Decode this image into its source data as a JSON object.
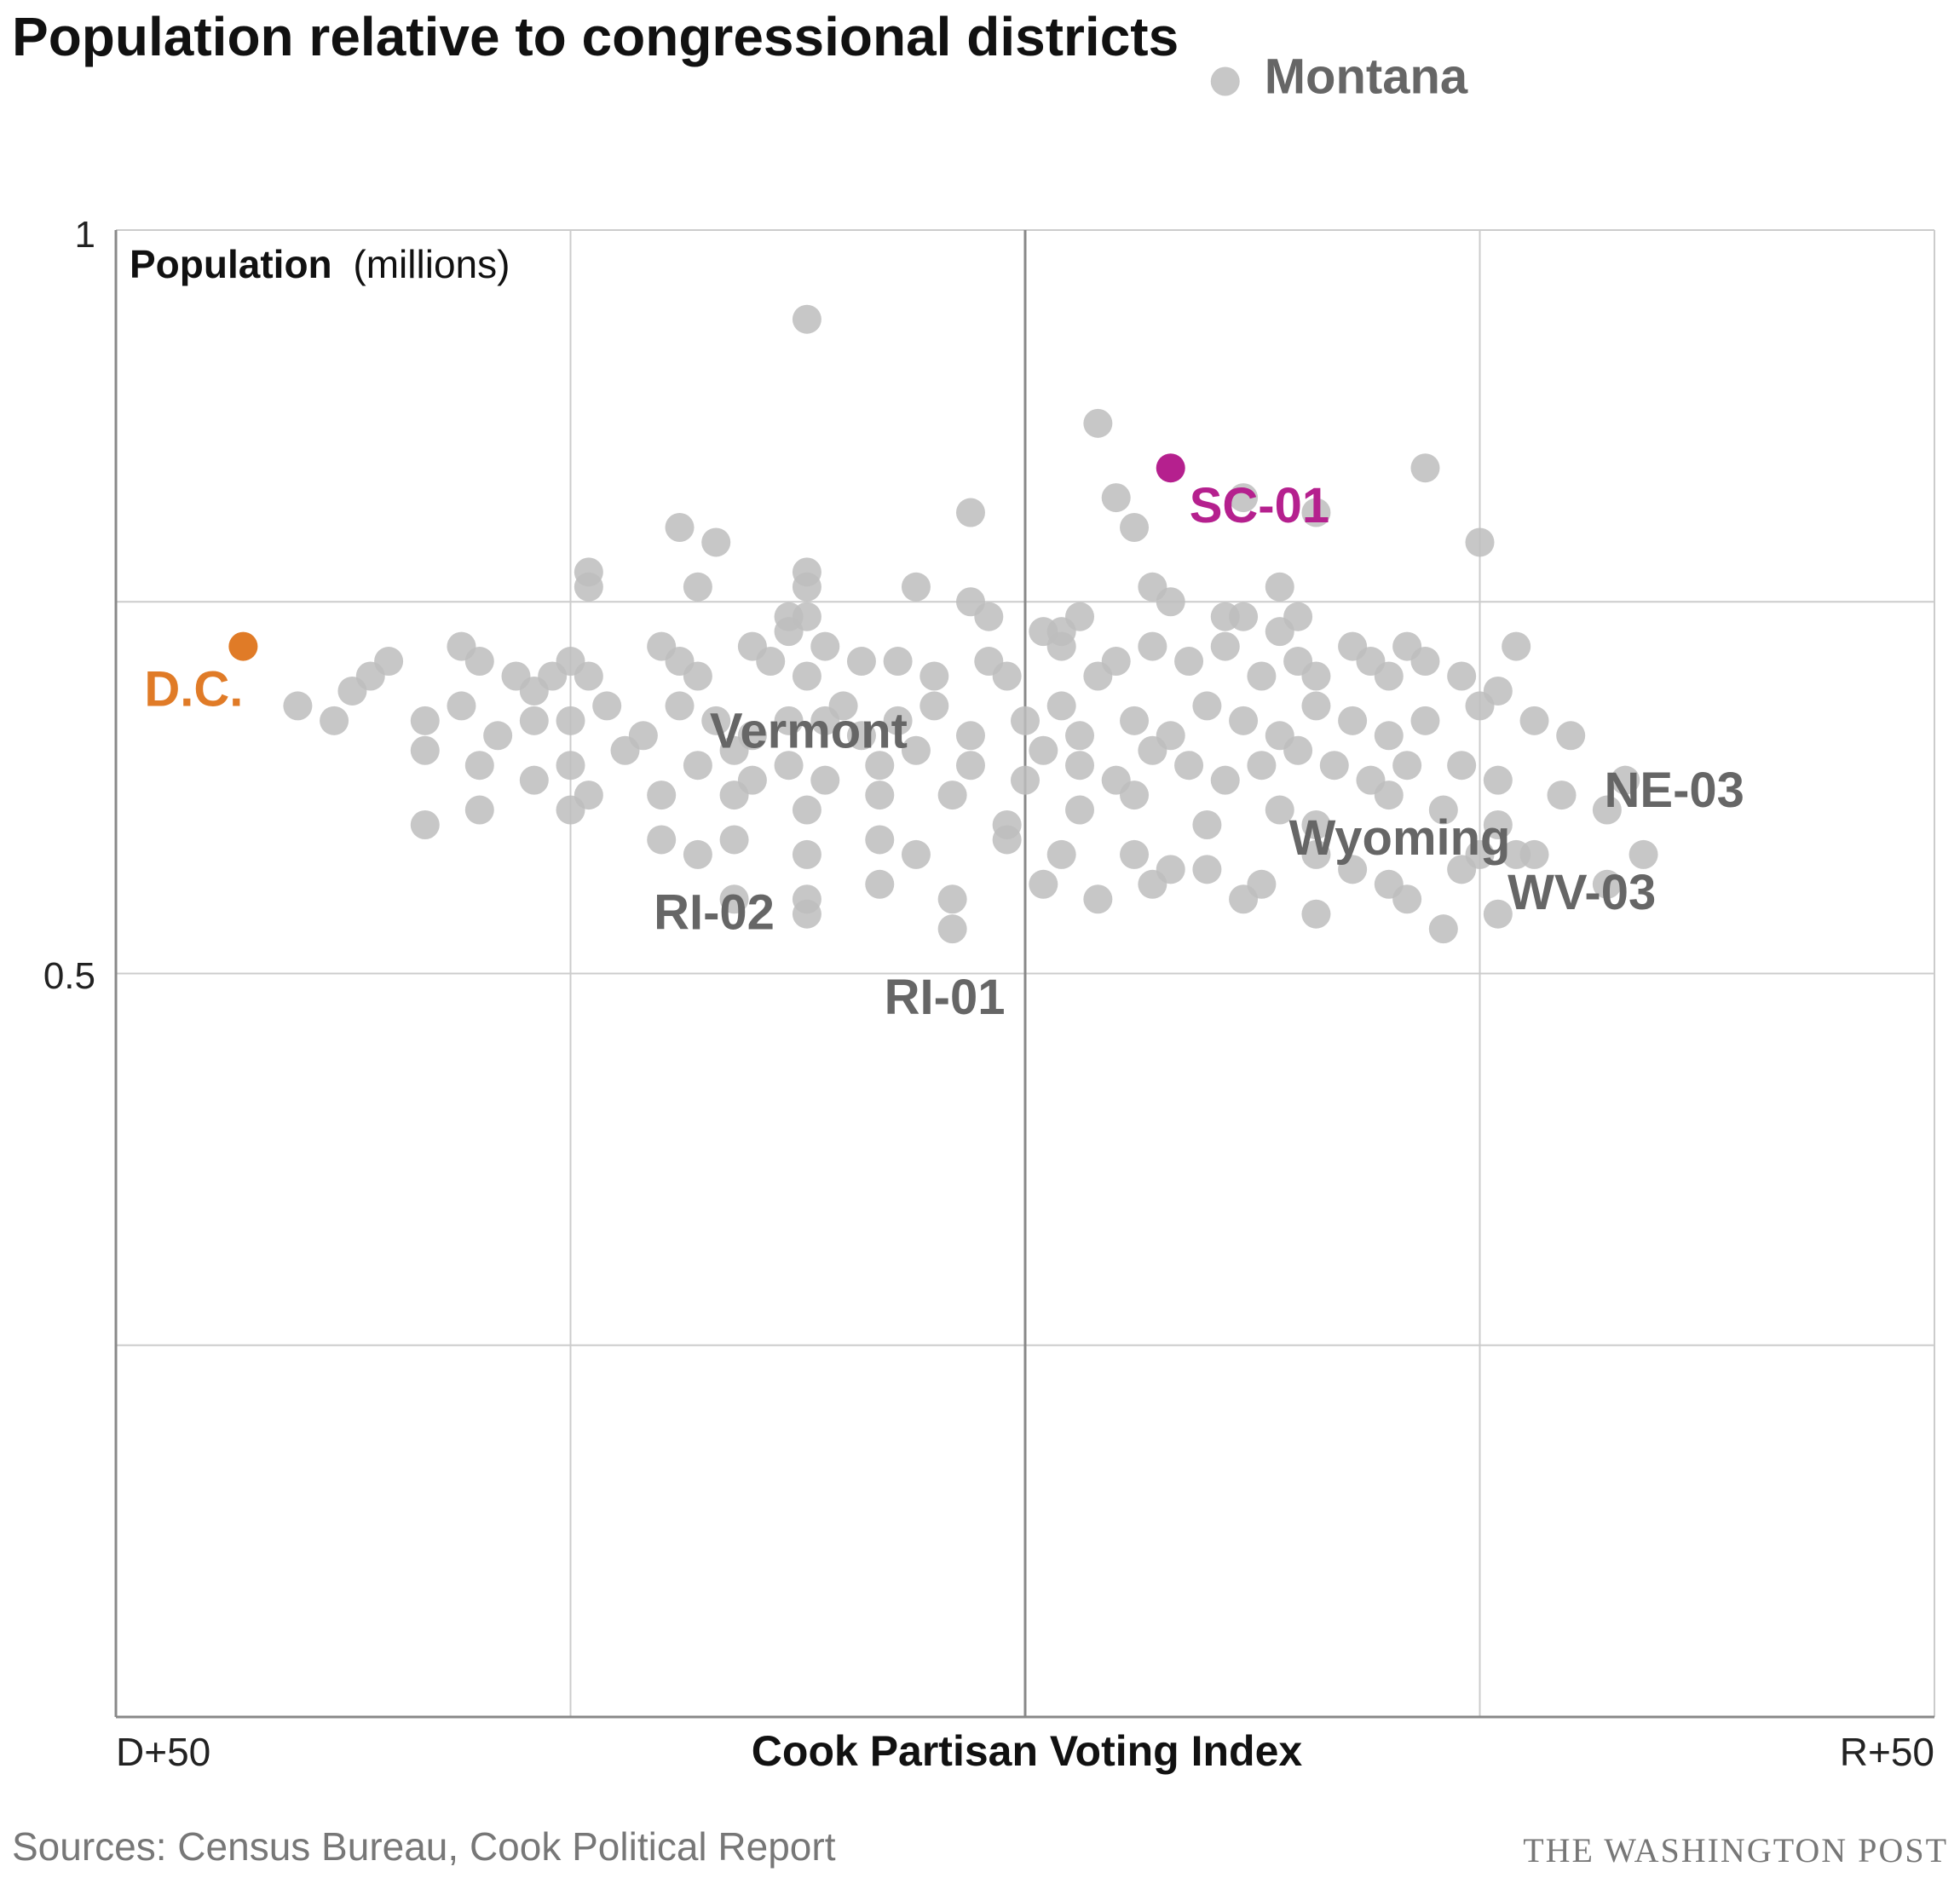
{
  "title": "Population relative to congressional districts",
  "source": "Sources: Census Bureau, Cook Political Report",
  "credit": "THE WASHINGTON POST",
  "colors": {
    "default": "#bdbdbd",
    "dc": "#e07b27",
    "sc01": "#b5208e",
    "label": "#666666",
    "grid": "#cccccc",
    "axis": "#888888"
  },
  "chart_data": {
    "type": "scatter",
    "y_label_bold": "Population",
    "y_label_unit": "(millions)",
    "x_label": "Cook Partisan Voting Index",
    "x_tick_left": "D+50",
    "x_tick_right": "R+50",
    "y_ticks": [
      "1",
      "0.5"
    ],
    "xlim": [
      -50,
      50
    ],
    "ylim": [
      0,
      1
    ],
    "grid": true,
    "highlighted": [
      {
        "label": "D.C.",
        "x": -43,
        "y": 0.72,
        "color": "#e07b27"
      },
      {
        "label": "SC-01",
        "x": 8,
        "y": 0.84,
        "color": "#b5208e"
      }
    ],
    "labeled": [
      {
        "label": "Montana",
        "x": 11,
        "y": 1.1
      },
      {
        "label": "Vermont",
        "x": -15,
        "y": 0.63
      },
      {
        "label": "RI-02",
        "x": -12,
        "y": 0.54
      },
      {
        "label": "RI-01",
        "x": -4,
        "y": 0.53
      },
      {
        "label": "Wyoming",
        "x": 25,
        "y": 0.58
      },
      {
        "label": "NE-03",
        "x": 29.5,
        "y": 0.62
      },
      {
        "label": "WV-03",
        "x": 27,
        "y": 0.58
      }
    ],
    "points": [
      [
        -12,
        0.94
      ],
      [
        4,
        0.87
      ],
      [
        -3,
        0.81
      ],
      [
        5,
        0.82
      ],
      [
        6,
        0.8
      ],
      [
        12,
        0.82
      ],
      [
        16,
        0.81
      ],
      [
        22,
        0.84
      ],
      [
        -19,
        0.8
      ],
      [
        -17,
        0.79
      ],
      [
        25,
        0.79
      ],
      [
        -24,
        0.77
      ],
      [
        -24,
        0.76
      ],
      [
        -12,
        0.77
      ],
      [
        -12,
        0.76
      ],
      [
        -18,
        0.76
      ],
      [
        -6,
        0.76
      ],
      [
        -12,
        0.74
      ],
      [
        -13,
        0.73
      ],
      [
        -13,
        0.74
      ],
      [
        -2,
        0.74
      ],
      [
        3,
        0.74
      ],
      [
        7,
        0.76
      ],
      [
        8,
        0.75
      ],
      [
        11,
        0.74
      ],
      [
        12,
        0.74
      ],
      [
        14,
        0.76
      ],
      [
        15,
        0.74
      ],
      [
        14,
        0.73
      ],
      [
        -11,
        0.67
      ],
      [
        -3,
        0.75
      ],
      [
        1,
        0.73
      ],
      [
        2,
        0.73
      ],
      [
        -31,
        0.72
      ],
      [
        -30,
        0.71
      ],
      [
        -35,
        0.71
      ],
      [
        -36,
        0.7
      ],
      [
        -37,
        0.69
      ],
      [
        -25,
        0.71
      ],
      [
        -24,
        0.7
      ],
      [
        -26,
        0.7
      ],
      [
        -28,
        0.7
      ],
      [
        -27,
        0.69
      ],
      [
        -20,
        0.72
      ],
      [
        -19,
        0.71
      ],
      [
        -18,
        0.7
      ],
      [
        -15,
        0.72
      ],
      [
        -14,
        0.71
      ],
      [
        -12,
        0.7
      ],
      [
        -11,
        0.72
      ],
      [
        -9,
        0.71
      ],
      [
        -7,
        0.71
      ],
      [
        -5,
        0.7
      ],
      [
        -2,
        0.71
      ],
      [
        -1,
        0.7
      ],
      [
        2,
        0.72
      ],
      [
        4,
        0.7
      ],
      [
        5,
        0.71
      ],
      [
        7,
        0.72
      ],
      [
        9,
        0.71
      ],
      [
        11,
        0.72
      ],
      [
        13,
        0.7
      ],
      [
        15,
        0.71
      ],
      [
        16,
        0.7
      ],
      [
        18,
        0.72
      ],
      [
        19,
        0.71
      ],
      [
        20,
        0.7
      ],
      [
        21,
        0.72
      ],
      [
        22,
        0.71
      ],
      [
        24,
        0.7
      ],
      [
        26,
        0.69
      ],
      [
        27,
        0.72
      ],
      [
        -40,
        0.68
      ],
      [
        -38,
        0.67
      ],
      [
        -33,
        0.67
      ],
      [
        -31,
        0.68
      ],
      [
        -29,
        0.66
      ],
      [
        -27,
        0.67
      ],
      [
        -25,
        0.67
      ],
      [
        -23,
        0.68
      ],
      [
        -21,
        0.66
      ],
      [
        -19,
        0.68
      ],
      [
        -17,
        0.67
      ],
      [
        -15,
        0.66
      ],
      [
        -13,
        0.67
      ],
      [
        -10,
        0.68
      ],
      [
        -9,
        0.66
      ],
      [
        -7,
        0.67
      ],
      [
        -5,
        0.68
      ],
      [
        -3,
        0.66
      ],
      [
        0,
        0.67
      ],
      [
        2,
        0.68
      ],
      [
        3,
        0.66
      ],
      [
        6,
        0.67
      ],
      [
        8,
        0.66
      ],
      [
        10,
        0.68
      ],
      [
        12,
        0.67
      ],
      [
        14,
        0.66
      ],
      [
        16,
        0.68
      ],
      [
        18,
        0.67
      ],
      [
        20,
        0.66
      ],
      [
        22,
        0.67
      ],
      [
        25,
        0.68
      ],
      [
        28,
        0.67
      ],
      [
        30,
        0.66
      ],
      [
        -33,
        0.65
      ],
      [
        -30,
        0.64
      ],
      [
        -27,
        0.63
      ],
      [
        -25,
        0.64
      ],
      [
        -22,
        0.65
      ],
      [
        -18,
        0.64
      ],
      [
        -16,
        0.65
      ],
      [
        -13,
        0.64
      ],
      [
        -11,
        0.63
      ],
      [
        -8,
        0.64
      ],
      [
        -6,
        0.65
      ],
      [
        -3,
        0.64
      ],
      [
        0,
        0.63
      ],
      [
        1,
        0.65
      ],
      [
        3,
        0.64
      ],
      [
        5,
        0.63
      ],
      [
        7,
        0.65
      ],
      [
        9,
        0.64
      ],
      [
        11,
        0.63
      ],
      [
        13,
        0.64
      ],
      [
        15,
        0.65
      ],
      [
        17,
        0.64
      ],
      [
        19,
        0.63
      ],
      [
        21,
        0.64
      ],
      [
        24,
        0.64
      ],
      [
        26,
        0.63
      ],
      [
        -33,
        0.6
      ],
      [
        -30,
        0.61
      ],
      [
        -25,
        0.61
      ],
      [
        -24,
        0.62
      ],
      [
        -20,
        0.62
      ],
      [
        -16,
        0.62
      ],
      [
        -12,
        0.61
      ],
      [
        -8,
        0.62
      ],
      [
        -4,
        0.62
      ],
      [
        -1,
        0.6
      ],
      [
        3,
        0.61
      ],
      [
        6,
        0.62
      ],
      [
        10,
        0.6
      ],
      [
        14,
        0.61
      ],
      [
        16,
        0.6
      ],
      [
        20,
        0.62
      ],
      [
        23,
        0.61
      ],
      [
        26,
        0.6
      ],
      [
        32,
        0.61
      ],
      [
        33,
        0.63
      ],
      [
        -20,
        0.59
      ],
      [
        -18,
        0.58
      ],
      [
        -16,
        0.59
      ],
      [
        -12,
        0.58
      ],
      [
        -8,
        0.59
      ],
      [
        -6,
        0.58
      ],
      [
        -1,
        0.59
      ],
      [
        2,
        0.58
      ],
      [
        6,
        0.58
      ],
      [
        8,
        0.57
      ],
      [
        10,
        0.57
      ],
      [
        13,
        0.56
      ],
      [
        16,
        0.58
      ],
      [
        18,
        0.57
      ],
      [
        20,
        0.56
      ],
      [
        24,
        0.57
      ],
      [
        28,
        0.58
      ],
      [
        34,
        0.58
      ],
      [
        -16,
        0.55
      ],
      [
        -12,
        0.55
      ],
      [
        -8,
        0.56
      ],
      [
        -4,
        0.55
      ],
      [
        1,
        0.56
      ],
      [
        4,
        0.55
      ],
      [
        7,
        0.56
      ],
      [
        12,
        0.55
      ],
      [
        16,
        0.54
      ],
      [
        21,
        0.55
      ],
      [
        23,
        0.53
      ],
      [
        26,
        0.54
      ],
      [
        32,
        0.56
      ]
    ]
  }
}
